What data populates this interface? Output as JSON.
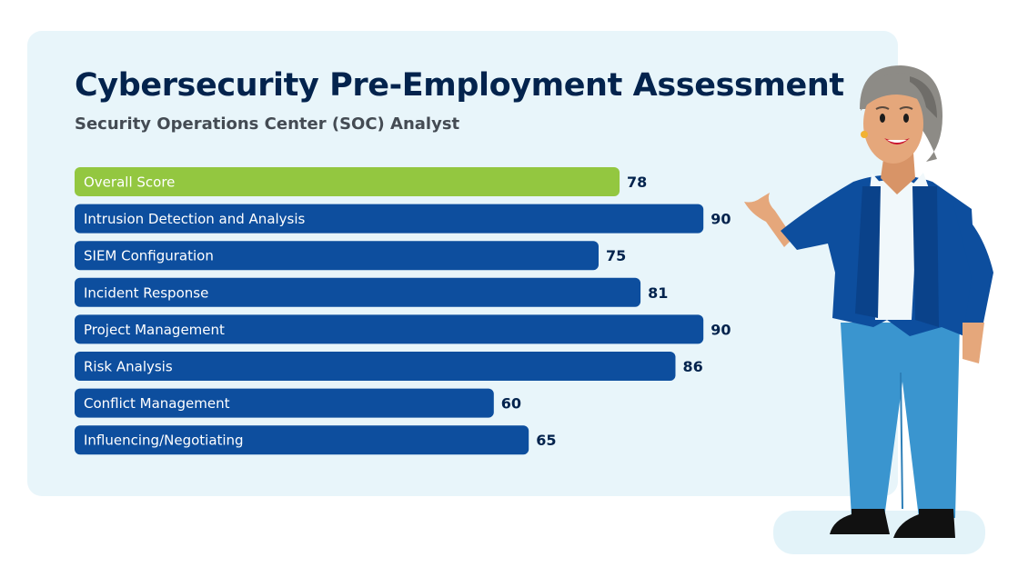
{
  "chart_data": {
    "type": "bar",
    "orientation": "horizontal",
    "title": "Cybersecurity Pre-Employment Assessment",
    "subtitle": "Security Operations Center (SOC) Analyst",
    "categories": [
      "Overall Score",
      "Intrusion Detection and Analysis",
      "SIEM Configuration",
      "Incident Response",
      "Project Management",
      "Risk Analysis",
      "Conflict Management",
      "Influencing/Negotiating"
    ],
    "values": [
      78,
      90,
      75,
      81,
      90,
      86,
      60,
      65
    ],
    "highlight_index": 0,
    "xlim": [
      0,
      100
    ],
    "grid": false,
    "legend": "none",
    "colors": {
      "highlight": "#93c740",
      "bar": "#0d4e9e",
      "value_text": "#03234d",
      "label_text": "#ffffff",
      "panel": "#e8f5fa"
    }
  },
  "illustration": {
    "icon": "presenter-woman-illustration"
  }
}
